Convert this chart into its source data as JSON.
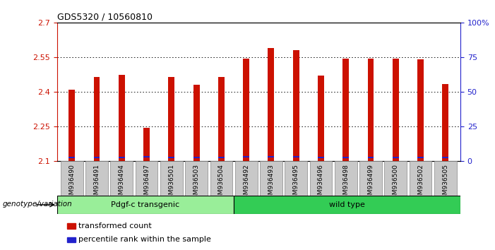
{
  "title": "GDS5320 / 10560810",
  "samples": [
    "GSM936490",
    "GSM936491",
    "GSM936494",
    "GSM936497",
    "GSM936501",
    "GSM936503",
    "GSM936504",
    "GSM936492",
    "GSM936493",
    "GSM936495",
    "GSM936496",
    "GSM936498",
    "GSM936499",
    "GSM936500",
    "GSM936502",
    "GSM936505"
  ],
  "red_values": [
    2.41,
    2.465,
    2.475,
    2.245,
    2.465,
    2.43,
    2.465,
    2.545,
    2.59,
    2.58,
    2.47,
    2.545,
    2.545,
    2.545,
    2.54,
    2.435
  ],
  "blue_values": [
    2.113,
    2.113,
    2.113,
    2.117,
    2.113,
    2.113,
    2.113,
    2.117,
    2.117,
    2.117,
    2.113,
    2.113,
    2.113,
    2.113,
    2.113,
    2.113
  ],
  "blue_heights": [
    0.006,
    0.006,
    0.006,
    0.006,
    0.006,
    0.006,
    0.006,
    0.006,
    0.006,
    0.006,
    0.006,
    0.006,
    0.006,
    0.006,
    0.006,
    0.006
  ],
  "ymin": 2.1,
  "ymax": 2.7,
  "yticks_left": [
    2.1,
    2.25,
    2.4,
    2.55,
    2.7
  ],
  "yticks_right_labels": [
    "0",
    "25",
    "50",
    "75",
    "100%"
  ],
  "yticks_right_vals": [
    0,
    25,
    50,
    75,
    100
  ],
  "group1_label": "Pdgf-c transgenic",
  "group2_label": "wild type",
  "group1_count": 7,
  "group2_count": 9,
  "bar_width": 0.25,
  "red_color": "#CC1100",
  "blue_color": "#2222CC",
  "group1_bg": "#99EE99",
  "group2_bg": "#33CC55",
  "xlabel_area": "genotype/variation",
  "legend1": "transformed count",
  "legend2": "percentile rank within the sample",
  "tick_color_left": "#CC1100",
  "tick_color_right": "#2222CC",
  "bar_bottom": 2.1,
  "grid_yticks": [
    2.25,
    2.4,
    2.55
  ]
}
